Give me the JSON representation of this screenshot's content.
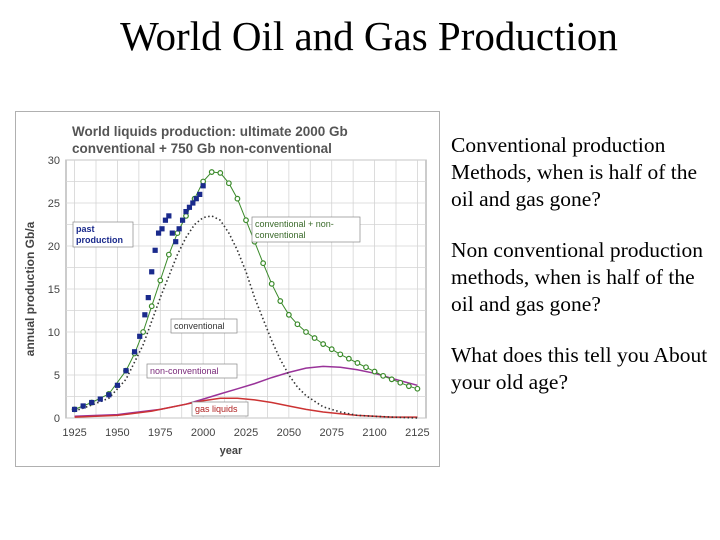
{
  "slide": {
    "title": "World Oil and Gas Production",
    "bullets": [
      "Conventional production Methods, when is half of the oil and gas gone?",
      "Non conventional production methods, when is half of the oil and gas gone?",
      "What does this tell you About your old age?"
    ]
  },
  "chart_data": {
    "type": "line",
    "title": "World liquids production: ultimate 2000 Gb conventional + 750 Gb non-conventional",
    "title_lines": [
      "World liquids production: ultimate 2000 Gb",
      "conventional + 750 Gb non-conventional"
    ],
    "xlabel": "year",
    "ylabel": "annual production  Gb/a",
    "xlim": [
      1920,
      2130
    ],
    "ylim": [
      0,
      30
    ],
    "xticks": [
      1925,
      1950,
      1975,
      2000,
      2025,
      2050,
      2075,
      2100,
      2125
    ],
    "yticks": [
      0,
      5,
      10,
      15,
      20,
      25,
      30
    ],
    "grid": true,
    "colors": {
      "past": "#1a2a8c",
      "total": "#3a8a2a",
      "conventional": "#333333",
      "non_conventional": "#993399",
      "gas_liquids": "#cc3333"
    },
    "series": [
      {
        "name": "past production",
        "style": "squares",
        "x": [
          1925,
          1930,
          1935,
          1940,
          1945,
          1950,
          1955,
          1960,
          1963,
          1966,
          1968,
          1970,
          1972,
          1974,
          1976,
          1978,
          1980,
          1982,
          1984,
          1986,
          1988,
          1990,
          1992,
          1994,
          1996,
          1998,
          2000
        ],
        "y": [
          1.0,
          1.4,
          1.8,
          2.2,
          2.7,
          3.8,
          5.5,
          7.7,
          9.5,
          12.0,
          14.0,
          17.0,
          19.5,
          21.5,
          22.0,
          23.0,
          23.5,
          21.5,
          20.5,
          22.0,
          23.0,
          24.0,
          24.5,
          25.0,
          25.5,
          26.0,
          27.0
        ]
      },
      {
        "name": "conventional + non-conventional",
        "style": "circles",
        "x": [
          1925,
          1935,
          1945,
          1955,
          1960,
          1965,
          1970,
          1975,
          1980,
          1985,
          1990,
          1995,
          2000,
          2005,
          2010,
          2015,
          2020,
          2025,
          2030,
          2035,
          2040,
          2045,
          2050,
          2055,
          2060,
          2065,
          2070,
          2075,
          2080,
          2085,
          2090,
          2095,
          2100,
          2105,
          2110,
          2115,
          2120,
          2125
        ],
        "y": [
          1.0,
          1.8,
          2.8,
          5.5,
          7.5,
          10.0,
          13.0,
          16.0,
          19.0,
          21.5,
          23.5,
          25.5,
          27.5,
          28.6,
          28.5,
          27.3,
          25.5,
          23.0,
          20.5,
          18.0,
          15.6,
          13.6,
          12.0,
          10.9,
          10.0,
          9.3,
          8.6,
          8.0,
          7.4,
          6.9,
          6.4,
          5.9,
          5.4,
          4.9,
          4.5,
          4.1,
          3.7,
          3.4
        ]
      },
      {
        "name": "conventional",
        "style": "dotted",
        "x": [
          1925,
          1935,
          1945,
          1955,
          1965,
          1975,
          1985,
          1990,
          1995,
          2000,
          2005,
          2010,
          2015,
          2020,
          2025,
          2030,
          2035,
          2040,
          2045,
          2050,
          2055,
          2060,
          2070,
          2080,
          2090,
          2100,
          2110,
          2125
        ],
        "y": [
          0.8,
          1.5,
          2.3,
          4.5,
          8.5,
          14.0,
          19.0,
          21.0,
          22.5,
          23.3,
          23.5,
          23.0,
          21.5,
          19.5,
          17.0,
          14.0,
          11.5,
          9.0,
          6.8,
          5.0,
          3.6,
          2.6,
          1.3,
          0.7,
          0.3,
          0.2,
          0.1,
          0.0
        ]
      },
      {
        "name": "non-conventional",
        "style": "line",
        "x": [
          1925,
          1950,
          1975,
          1990,
          2000,
          2010,
          2020,
          2030,
          2040,
          2050,
          2060,
          2070,
          2080,
          2090,
          2100,
          2110,
          2125
        ],
        "y": [
          0.2,
          0.4,
          1.0,
          1.6,
          2.2,
          2.8,
          3.4,
          4.0,
          4.7,
          5.3,
          5.8,
          6.0,
          5.9,
          5.6,
          5.2,
          4.6,
          3.8
        ]
      },
      {
        "name": "gas liquids",
        "style": "line",
        "x": [
          1925,
          1950,
          1970,
          1990,
          2000,
          2010,
          2020,
          2030,
          2040,
          2050,
          2060,
          2070,
          2080,
          2090,
          2100,
          2110,
          2125
        ],
        "y": [
          0.1,
          0.3,
          0.8,
          1.6,
          2.0,
          2.3,
          2.3,
          2.1,
          1.8,
          1.4,
          1.0,
          0.7,
          0.5,
          0.3,
          0.2,
          0.1,
          0.1
        ]
      }
    ],
    "annotations": [
      {
        "text_lines": [
          "past",
          "production"
        ],
        "series": "past production"
      },
      {
        "text_lines": [
          "conventional + non-",
          "conventional"
        ],
        "series": "conventional + non-conventional"
      },
      {
        "text_lines": [
          "conventional"
        ],
        "series": "conventional"
      },
      {
        "text_lines": [
          "non-conventional"
        ],
        "series": "non-conventional"
      },
      {
        "text_lines": [
          "gas liquids"
        ],
        "series": "gas liquids"
      }
    ]
  }
}
